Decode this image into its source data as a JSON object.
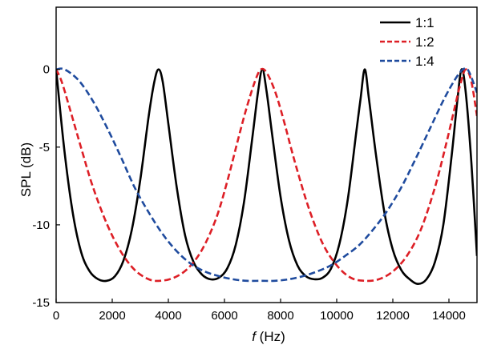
{
  "chart_data": {
    "type": "line",
    "title": "",
    "xlabel_italic": "f",
    "xlabel_rest": " (Hz)",
    "ylabel": "SPL (dB)",
    "xlim": [
      0,
      15000
    ],
    "ylim": [
      -15,
      4
    ],
    "xticks": [
      0,
      2000,
      4000,
      6000,
      8000,
      10000,
      12000,
      14000
    ],
    "yticks": [
      0,
      -5,
      -10,
      -15
    ],
    "grid": false,
    "legend_position": "top-right",
    "series": [
      {
        "name": "1:1",
        "color": "#000000",
        "dash": "solid",
        "x": [
          0,
          300,
          600,
          900,
          1200,
          1500,
          1800,
          2100,
          2400,
          2700,
          3000,
          3300,
          3500,
          3650,
          3800,
          4000,
          4300,
          4600,
          4900,
          5200,
          5500,
          5800,
          6100,
          6400,
          6700,
          7000,
          7200,
          7350,
          7500,
          7700,
          8000,
          8300,
          8600,
          8900,
          9200,
          9500,
          9800,
          10100,
          10400,
          10700,
          10850,
          11000,
          11150,
          11400,
          11700,
          12000,
          12300,
          12600,
          12900,
          13200,
          13500,
          13800,
          14100,
          14300,
          14450,
          14600,
          14800,
          15000
        ],
        "y": [
          0,
          -5.3,
          -9.3,
          -11.8,
          -13.0,
          -13.5,
          -13.6,
          -13.3,
          -12.3,
          -10.3,
          -7.1,
          -3.0,
          -0.8,
          0,
          -0.8,
          -3.5,
          -7.6,
          -10.7,
          -12.4,
          -13.2,
          -13.5,
          -13.4,
          -12.8,
          -11.3,
          -8.5,
          -4.3,
          -1.4,
          0,
          -1.4,
          -4.2,
          -8.2,
          -11.0,
          -12.6,
          -13.3,
          -13.5,
          -13.4,
          -12.8,
          -11.2,
          -8.3,
          -4.0,
          -1.9,
          0,
          -1.9,
          -5.5,
          -9.2,
          -11.6,
          -12.9,
          -13.5,
          -13.8,
          -13.5,
          -12.4,
          -10.0,
          -5.5,
          -2.0,
          0,
          -1.5,
          -6.0,
          -12.0
        ]
      },
      {
        "name": "1:2",
        "color": "#dd1f26",
        "dash": "dashed",
        "x": [
          0,
          200,
          500,
          900,
          1300,
          1800,
          2300,
          2800,
          3300,
          3700,
          4200,
          4700,
          5200,
          5700,
          6100,
          6500,
          6800,
          7100,
          7300,
          7500,
          7800,
          8100,
          8500,
          9000,
          9500,
          10000,
          10500,
          11000,
          11500,
          12000,
          12500,
          13000,
          13500,
          13900,
          14200,
          14400,
          14600,
          14800,
          15000
        ],
        "y": [
          0,
          -0.8,
          -2.6,
          -5.1,
          -7.5,
          -9.9,
          -11.7,
          -12.9,
          -13.5,
          -13.6,
          -13.4,
          -12.8,
          -11.6,
          -9.6,
          -7.2,
          -4.4,
          -2.4,
          -0.7,
          0,
          -0.2,
          -1.4,
          -3.2,
          -5.9,
          -8.9,
          -11.2,
          -12.6,
          -13.4,
          -13.6,
          -13.5,
          -13.0,
          -12.0,
          -10.3,
          -7.6,
          -4.8,
          -2.5,
          -1.0,
          0,
          -0.8,
          -3.0
        ]
      },
      {
        "name": "1:4",
        "color": "#1f4b9e",
        "dash": "dashed",
        "x": [
          0,
          300,
          800,
          1300,
          1800,
          2300,
          2800,
          3300,
          3800,
          4300,
          4800,
          5300,
          5800,
          6300,
          6800,
          7300,
          7800,
          8300,
          8800,
          9300,
          9800,
          10300,
          10800,
          11300,
          11800,
          12300,
          12800,
          13300,
          13800,
          14200,
          14500,
          14700,
          15000
        ],
        "y": [
          0,
          0,
          -0.7,
          -2.0,
          -3.7,
          -5.6,
          -7.6,
          -9.2,
          -10.6,
          -11.7,
          -12.5,
          -13.0,
          -13.3,
          -13.5,
          -13.6,
          -13.6,
          -13.6,
          -13.5,
          -13.3,
          -13.0,
          -12.6,
          -12.0,
          -11.3,
          -10.3,
          -9.1,
          -7.6,
          -5.8,
          -3.9,
          -2.0,
          -0.7,
          0,
          -0.1,
          -1.5
        ]
      }
    ]
  }
}
